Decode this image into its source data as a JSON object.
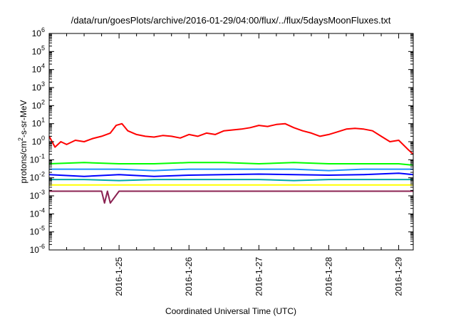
{
  "chart_data": {
    "type": "line",
    "title": "/data/run/goesPlots/archive/2016-01-29/04:00/flux/../flux/5daysMoonFluxes.txt",
    "xlabel": "Coordinated Universal Time (UTC)",
    "ylabel": "protons/cm2-s-sr-MeV",
    "ylabel_parts": {
      "pre": "protons/cm",
      "sup": "2",
      "post": "-s-sr-MeV"
    },
    "y_scale": "log",
    "ylim": [
      1e-06,
      1000000.0
    ],
    "xlim": [
      "2016-01-24 00:00",
      "2016-01-29 05:00"
    ],
    "grid": false,
    "legend": "none",
    "y_ticks": [
      {
        "base": "10",
        "exp": "-6"
      },
      {
        "base": "10",
        "exp": "-5"
      },
      {
        "base": "10",
        "exp": "-4"
      },
      {
        "base": "10",
        "exp": "-3"
      },
      {
        "base": "10",
        "exp": "-2"
      },
      {
        "base": "10",
        "exp": "-1"
      },
      {
        "base": "10",
        "exp": "0"
      },
      {
        "base": "10",
        "exp": "1"
      },
      {
        "base": "10",
        "exp": "2"
      },
      {
        "base": "10",
        "exp": "3"
      },
      {
        "base": "10",
        "exp": "4"
      },
      {
        "base": "10",
        "exp": "5"
      },
      {
        "base": "10",
        "exp": "6"
      }
    ],
    "x_ticks": [
      "2016-1-25",
      "2016-1-26",
      "2016-1-27",
      "2016-1-28",
      "2016-1-29"
    ],
    "series": [
      {
        "color": "#ff0000",
        "x": [
          "2016-01-24 00:00",
          "2016-01-24 02:00",
          "2016-01-24 04:00",
          "2016-01-24 06:00",
          "2016-01-24 09:00",
          "2016-01-24 12:00",
          "2016-01-24 15:00",
          "2016-01-24 18:00",
          "2016-01-24 21:00",
          "2016-01-24 23:00",
          "2016-01-25 01:00",
          "2016-01-25 03:00",
          "2016-01-25 06:00",
          "2016-01-25 09:00",
          "2016-01-25 12:00",
          "2016-01-25 15:00",
          "2016-01-25 18:00",
          "2016-01-25 21:00",
          "2016-01-26 00:00",
          "2016-01-26 03:00",
          "2016-01-26 06:00",
          "2016-01-26 09:00",
          "2016-01-26 12:00",
          "2016-01-26 15:00",
          "2016-01-26 18:00",
          "2016-01-26 21:00",
          "2016-01-27 00:00",
          "2016-01-27 03:00",
          "2016-01-27 06:00",
          "2016-01-27 09:00",
          "2016-01-27 12:00",
          "2016-01-27 15:00",
          "2016-01-27 18:00",
          "2016-01-27 21:00",
          "2016-01-28 00:00",
          "2016-01-28 03:00",
          "2016-01-28 06:00",
          "2016-01-28 09:00",
          "2016-01-28 12:00",
          "2016-01-28 15:00",
          "2016-01-28 18:00",
          "2016-01-28 21:00",
          "2016-01-29 00:00",
          "2016-01-29 03:00",
          "2016-01-29 05:00"
        ],
        "values": [
          2.0,
          0.5,
          1.0,
          0.7,
          1.2,
          1.0,
          1.5,
          2.0,
          3.0,
          8.0,
          10.0,
          4.0,
          2.5,
          2.0,
          1.8,
          2.2,
          2.0,
          1.6,
          2.5,
          2.0,
          3.0,
          2.5,
          4.0,
          4.5,
          5.0,
          6.0,
          8.0,
          7.0,
          9.0,
          10.0,
          6.0,
          4.0,
          3.0,
          2.0,
          2.5,
          3.5,
          5.0,
          5.5,
          5.0,
          4.0,
          2.0,
          1.0,
          1.2,
          0.4,
          0.2
        ]
      },
      {
        "color": "#00ff00",
        "x": [
          "2016-01-24 00:00",
          "2016-01-24 12:00",
          "2016-01-25 00:00",
          "2016-01-25 12:00",
          "2016-01-26 00:00",
          "2016-01-26 12:00",
          "2016-01-27 00:00",
          "2016-01-27 12:00",
          "2016-01-28 00:00",
          "2016-01-28 12:00",
          "2016-01-29 00:00",
          "2016-01-29 05:00"
        ],
        "values": [
          0.06,
          0.07,
          0.06,
          0.06,
          0.07,
          0.07,
          0.06,
          0.07,
          0.06,
          0.06,
          0.06,
          0.05
        ]
      },
      {
        "color": "#1e90ff",
        "x": [
          "2016-01-24 00:00",
          "2016-01-24 12:00",
          "2016-01-25 00:00",
          "2016-01-25 12:00",
          "2016-01-26 00:00",
          "2016-01-26 12:00",
          "2016-01-27 00:00",
          "2016-01-27 12:00",
          "2016-01-28 00:00",
          "2016-01-28 12:00",
          "2016-01-29 00:00",
          "2016-01-29 05:00"
        ],
        "values": [
          0.03,
          0.03,
          0.03,
          0.025,
          0.03,
          0.03,
          0.03,
          0.03,
          0.025,
          0.03,
          0.03,
          0.03
        ]
      },
      {
        "color": "#0000ff",
        "x": [
          "2016-01-24 00:00",
          "2016-01-24 12:00",
          "2016-01-25 00:00",
          "2016-01-25 12:00",
          "2016-01-26 00:00",
          "2016-01-26 12:00",
          "2016-01-27 00:00",
          "2016-01-27 12:00",
          "2016-01-28 00:00",
          "2016-01-28 12:00",
          "2016-01-29 00:00",
          "2016-01-29 05:00"
        ],
        "values": [
          0.015,
          0.012,
          0.015,
          0.012,
          0.014,
          0.015,
          0.016,
          0.015,
          0.014,
          0.015,
          0.018,
          0.015
        ]
      },
      {
        "color": "#00a8a8",
        "x": [
          "2016-01-24 00:00",
          "2016-01-24 12:00",
          "2016-01-25 00:00",
          "2016-01-25 12:00",
          "2016-01-26 00:00",
          "2016-01-26 12:00",
          "2016-01-27 00:00",
          "2016-01-27 12:00",
          "2016-01-28 00:00",
          "2016-01-28 12:00",
          "2016-01-29 00:00",
          "2016-01-29 05:00"
        ],
        "values": [
          0.008,
          0.008,
          0.007,
          0.008,
          0.008,
          0.008,
          0.008,
          0.007,
          0.008,
          0.008,
          0.008,
          0.008
        ]
      },
      {
        "color": "#ffff00",
        "x": [
          "2016-01-24 00:00",
          "2016-01-29 05:00"
        ],
        "values": [
          0.004,
          0.004
        ]
      },
      {
        "color": "#8b2252",
        "x": [
          "2016-01-24 00:00",
          "2016-01-24 18:00",
          "2016-01-24 19:00",
          "2016-01-24 20:00",
          "2016-01-24 21:00",
          "2016-01-25 00:00",
          "2016-01-26 00:00",
          "2016-01-27 00:00",
          "2016-01-28 00:00",
          "2016-01-29 00:00",
          "2016-01-29 05:00"
        ],
        "values": [
          0.0018,
          0.0018,
          0.0004,
          0.0018,
          0.0004,
          0.0018,
          0.0018,
          0.0018,
          0.0018,
          0.0018,
          0.0018
        ]
      }
    ]
  }
}
